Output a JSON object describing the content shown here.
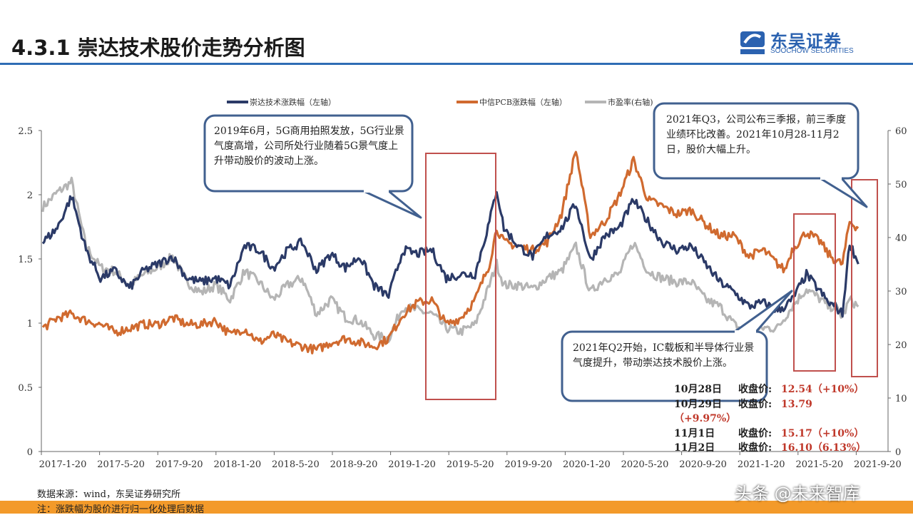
{
  "header": {
    "title": "4.3.1 崇达技术股价走势分析图",
    "logo_cn": "东吴证券",
    "logo_en": "SOOCHOW SECURITIES",
    "logo_mark": "SCS"
  },
  "chart_data": {
    "type": "line",
    "x_unit": "month index (0 = 2017-01)",
    "x": [
      0,
      1,
      2,
      3,
      4,
      5,
      6,
      7,
      8,
      9,
      10,
      11,
      12,
      13,
      14,
      15,
      16,
      17,
      18,
      19,
      20,
      21,
      22,
      23,
      24,
      25,
      26,
      27,
      28,
      29,
      30,
      31,
      31.5,
      32,
      33,
      34,
      35,
      36,
      37,
      38,
      39,
      40,
      41,
      42,
      43,
      44,
      45,
      46,
      47,
      48,
      49,
      50,
      51,
      51.5,
      52,
      53,
      54,
      54.5,
      55,
      55.5,
      56,
      56.6
    ],
    "series": [
      {
        "name": "崇达技术涨跌幅（左轴）",
        "axis": "left",
        "color": "#2b3a67",
        "values": [
          1.63,
          1.74,
          1.99,
          1.57,
          1.35,
          1.41,
          1.27,
          1.41,
          1.46,
          1.52,
          1.35,
          1.32,
          1.35,
          1.29,
          1.6,
          1.57,
          1.43,
          1.57,
          1.63,
          1.41,
          1.54,
          1.43,
          1.52,
          1.29,
          1.21,
          1.57,
          1.54,
          1.57,
          1.35,
          1.38,
          1.38,
          1.79,
          2.04,
          1.74,
          1.6,
          1.52,
          1.68,
          1.74,
          1.93,
          1.49,
          1.68,
          1.74,
          1.96,
          1.79,
          1.63,
          1.57,
          1.6,
          1.46,
          1.32,
          1.24,
          1.13,
          1.16,
          1.1,
          1.13,
          1.18,
          1.38,
          1.24,
          1.16,
          1.13,
          1.07,
          1.63,
          1.46
        ]
      },
      {
        "name": "中信PCB涨跌幅（左轴）",
        "axis": "left",
        "color": "#d06a2f",
        "values": [
          0.96,
          1.04,
          1.07,
          1.02,
          0.99,
          0.93,
          0.96,
          0.99,
          0.99,
          1.04,
          0.99,
          0.99,
          1.02,
          0.91,
          0.96,
          0.85,
          0.91,
          0.85,
          0.82,
          0.79,
          0.85,
          0.88,
          0.85,
          0.82,
          0.88,
          1.07,
          1.16,
          1.18,
          0.99,
          1.04,
          1.18,
          1.46,
          1.74,
          1.63,
          1.6,
          1.57,
          1.63,
          1.85,
          2.35,
          1.68,
          1.79,
          1.99,
          2.27,
          1.96,
          1.91,
          1.85,
          1.88,
          1.77,
          1.68,
          1.68,
          1.52,
          1.57,
          1.46,
          1.41,
          1.57,
          1.71,
          1.63,
          1.54,
          1.49,
          1.46,
          1.79,
          1.74
        ]
      },
      {
        "name": "市盈率(右轴)",
        "axis": "right",
        "color": "#b5b5b5",
        "values": [
          45.7,
          48.4,
          50.4,
          38.4,
          34.4,
          33.7,
          31.1,
          33.1,
          34.4,
          36.4,
          31.7,
          29.7,
          31.1,
          28.4,
          33.7,
          31.7,
          28.4,
          31.1,
          32.4,
          25.7,
          28.4,
          25.1,
          24.4,
          21.7,
          21.1,
          27.1,
          26.4,
          25.7,
          23.1,
          22.4,
          23.7,
          31.1,
          35.1,
          31.1,
          31.1,
          30.4,
          32.4,
          33.7,
          38.4,
          29.7,
          32.4,
          33.1,
          39.1,
          33.7,
          32.4,
          31.7,
          31.7,
          28.4,
          27.1,
          23.7,
          21.7,
          23.1,
          23.1,
          25.1,
          27.1,
          30.4,
          28.4,
          27.1,
          27.1,
          25.1,
          28.4,
          27.1
        ]
      }
    ],
    "y_left": {
      "ylim": [
        0,
        2.5
      ],
      "ticks": [
        "0",
        "0.5",
        "1",
        "1.5",
        "2",
        "2.5"
      ]
    },
    "y_right": {
      "ylim": [
        0,
        60
      ],
      "ticks": [
        "0",
        "10",
        "20",
        "30",
        "40",
        "50",
        "60"
      ]
    },
    "x_ticks": [
      "2017-1-20",
      "2017-5-20",
      "2017-9-20",
      "2018-1-20",
      "2018-5-20",
      "2018-9-20",
      "2019-1-20",
      "2019-5-20",
      "2019-9-20",
      "2020-1-20",
      "2020-5-20",
      "2020-9-20",
      "2021-1-20",
      "2021-5-20",
      "2021-9-20"
    ],
    "legend_position": "top",
    "annotations": [
      "2019年6月，5G商用拍照发放，5G行业景气度高增，公司所处行业随着5G景气度上升带动股价的波动上涨。",
      "2021年Q3，公司公布三季报，前三季度业绩环比改善。2021年10月28-11月2日，股价大幅上升。",
      "2021年Q2开始，IC载板和半导体行业景气度提升，带动崇达技术股价上涨。"
    ]
  },
  "closing": [
    {
      "date": "10月28日",
      "label": "收盘价:",
      "value": "12.54（+10%）"
    },
    {
      "date": "10月29日",
      "label": "收盘价:",
      "value": "13.79"
    },
    {
      "date": "",
      "label": "",
      "value": "（+9.97%）"
    },
    {
      "date": "11月1日",
      "label": "收盘价:",
      "value": "15.17（+10%）"
    },
    {
      "date": "11月2日",
      "label": "收盘价:",
      "value": "16.10（6.13%）"
    }
  ],
  "footer": {
    "source": "数据来源：wind，东吴证券研究所",
    "note": "注：涨跌幅为股价进行归一化处理后数据",
    "watermark": "头条 @未来智库"
  }
}
